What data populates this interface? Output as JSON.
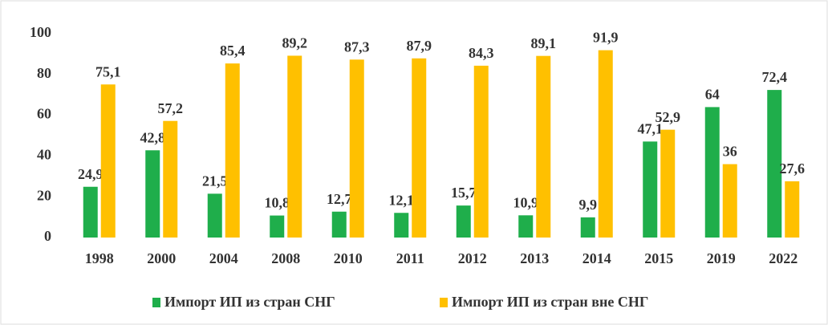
{
  "chart_data": {
    "type": "bar",
    "categories": [
      "1998",
      "2000",
      "2004",
      "2008",
      "2010",
      "2011",
      "2012",
      "2013",
      "2014",
      "2015",
      "2019",
      "2022"
    ],
    "series": [
      {
        "name": "Импорт ИП из стран СНГ",
        "color": "#1fae4b",
        "values": [
          24.9,
          42.8,
          21.5,
          10.8,
          12.7,
          12.1,
          15.7,
          10.9,
          9.9,
          47.1,
          64,
          72.4
        ],
        "value_labels": [
          "24,9",
          "42,8",
          "21,5",
          "10,8",
          "12,7",
          "12,1",
          "15,7",
          "10,9",
          "9,9",
          "47,1",
          "64",
          "72,4"
        ]
      },
      {
        "name": "Импорт ИП из стран вне СНГ",
        "color": "#ffc000",
        "values": [
          75.1,
          57.2,
          85.4,
          89.2,
          87.3,
          87.9,
          84.3,
          89.1,
          91.9,
          52.9,
          36,
          27.6
        ],
        "value_labels": [
          "75,1",
          "57,2",
          "85,4",
          "89,2",
          "87,3",
          "87,9",
          "84,3",
          "89,1",
          "91,9",
          "52,9",
          "36",
          "27,6"
        ]
      }
    ],
    "ylim": [
      0,
      100
    ],
    "yticks": [
      0,
      20,
      40,
      60,
      80,
      100
    ],
    "grid": false,
    "legend": "bottom"
  }
}
